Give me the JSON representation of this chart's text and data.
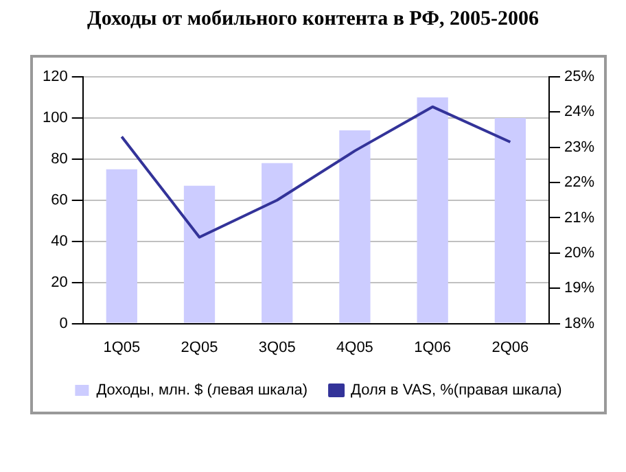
{
  "chart_data": {
    "type": "bar",
    "title": "Доходы от мобильного контента в РФ, 2005-2006",
    "categories": [
      "1Q05",
      "2Q05",
      "3Q05",
      "4Q05",
      "1Q06",
      "2Q06"
    ],
    "series": [
      {
        "name": "Доходы, млн. $ (левая шкала)",
        "color": "#ccccff",
        "values": [
          75,
          67,
          78,
          94,
          110,
          100
        ]
      },
      {
        "name": "Доля в VAS, %(правая шкала)",
        "type": "line",
        "axis": "y2",
        "color": "#333399",
        "values": [
          23.3,
          20.45,
          21.5,
          22.9,
          24.15,
          23.15
        ]
      }
    ],
    "ylim": [
      0,
      120
    ],
    "yticks": [
      0,
      20,
      40,
      60,
      80,
      100,
      120
    ],
    "y2lim": [
      18,
      25
    ],
    "y2ticks": [
      {
        "value": 18,
        "label": "18%"
      },
      {
        "value": 19,
        "label": "19%"
      },
      {
        "value": 20,
        "label": "20%"
      },
      {
        "value": 21,
        "label": "21%"
      },
      {
        "value": 22,
        "label": "22%"
      },
      {
        "value": 23,
        "label": "23%"
      },
      {
        "value": 24,
        "label": "24%"
      },
      {
        "value": 25,
        "label": "25%"
      }
    ],
    "grid": "y",
    "legend": "bottom",
    "marker": "none"
  }
}
